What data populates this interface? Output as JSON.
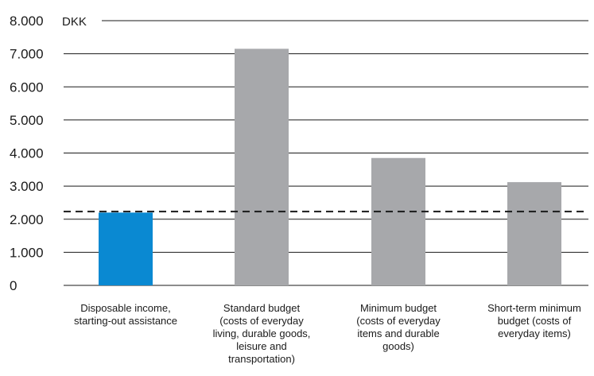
{
  "chart_data": {
    "type": "bar",
    "unit_label": "DKK",
    "categories": [
      [
        "Disposable income,",
        "starting-out assistance"
      ],
      [
        "Standard budget",
        "(costs of everyday",
        "living, durable goods,",
        "leisure and",
        "transportation)"
      ],
      [
        "Minimum budget",
        "(costs of everyday",
        "items and durable",
        "goods)"
      ],
      [
        "Short-term minimum",
        "budget (costs of",
        "everyday items)"
      ]
    ],
    "values": [
      2200,
      7150,
      3850,
      3120
    ],
    "bar_colors": [
      "#0a89d2",
      "#a7a8ab",
      "#a7a8ab",
      "#a7a8ab"
    ],
    "reference_line": {
      "value": 2230,
      "style": "dashed",
      "color": "#1a1a1a"
    },
    "yticks": [
      "0",
      "1.000",
      "2.000",
      "3.000",
      "4.000",
      "5.000",
      "6.000",
      "7.000",
      "8.000"
    ],
    "ylim": [
      0,
      8000
    ],
    "grid": true,
    "legend": "none"
  }
}
